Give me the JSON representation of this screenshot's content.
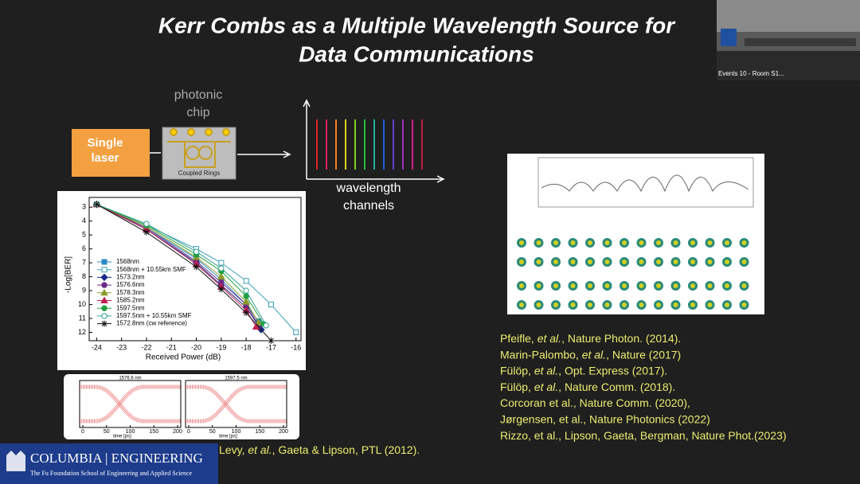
{
  "header": {
    "title_lines": [
      "Kerr Combs as a Multiple Wavelength Source for",
      "Data Communications"
    ]
  },
  "video_inset": {
    "label": "Events 10 - Room S1..."
  },
  "schematic": {
    "laser": [
      "Single",
      "laser"
    ],
    "chip_label": [
      "photonic",
      "chip"
    ],
    "chip_caption": "Coupled Rings",
    "spectrum_label": [
      "wavelength",
      "channels"
    ]
  },
  "chart_data": {
    "type": "line",
    "ylabel": "-Log[BER]",
    "xlabel": "Received Power (dB)",
    "xlim": [
      -24.3,
      -15.8
    ],
    "xticks": [
      -24,
      -23,
      -22,
      -21,
      -20,
      -19,
      -18,
      -17,
      -16
    ],
    "ylim": [
      2.3,
      12.6
    ],
    "yticks": [
      3,
      4,
      5,
      6,
      7,
      8,
      9,
      10,
      11,
      12
    ],
    "y_inverted": true,
    "series": [
      {
        "name": "1568nm",
        "color": "#2a8cc8",
        "marker": "square",
        "x": [
          -24,
          -22,
          -20,
          -19,
          -18,
          -17.5
        ],
        "values": [
          2.8,
          4.5,
          6.7,
          8.2,
          10,
          11.2
        ]
      },
      {
        "name": "1568nm + 10.55km SMF",
        "color": "#3aa0b8",
        "marker": "open-square",
        "x": [
          -24,
          -22,
          -20,
          -19,
          -18,
          -17,
          -16
        ],
        "values": [
          2.8,
          4.3,
          6,
          7,
          8.3,
          10,
          12
        ]
      },
      {
        "name": "1573.2nm",
        "color": "#1a2a8a",
        "marker": "diamond",
        "x": [
          -24,
          -22,
          -20,
          -19,
          -18,
          -17.4
        ],
        "values": [
          2.8,
          4.6,
          7,
          8.6,
          10.2,
          11.8
        ]
      },
      {
        "name": "1576.6nm",
        "color": "#6a2a8a",
        "marker": "circle",
        "x": [
          -24,
          -22,
          -20,
          -19,
          -18,
          -17.5
        ],
        "values": [
          2.8,
          4.5,
          6.9,
          8.4,
          10,
          11.5
        ]
      },
      {
        "name": "1578.3nm",
        "color": "#8a9a2a",
        "marker": "triangle",
        "x": [
          -24,
          -22,
          -20,
          -19,
          -18,
          -17.5
        ],
        "values": [
          2.8,
          4.4,
          6.6,
          8,
          9.8,
          11.3
        ]
      },
      {
        "name": "1585.2nm",
        "color": "#c02050",
        "marker": "triangle",
        "x": [
          -24,
          -22,
          -20,
          -19,
          -18,
          -17.6
        ],
        "values": [
          2.8,
          4.6,
          7.1,
          8.7,
          10.4,
          11.6
        ]
      },
      {
        "name": "1597.5nm",
        "color": "#20a040",
        "marker": "circle",
        "x": [
          -24,
          -22,
          -20,
          -19,
          -18,
          -17.3
        ],
        "values": [
          2.8,
          4.3,
          6.4,
          7.6,
          9.4,
          11.4
        ]
      },
      {
        "name": "1597.5nm + 10.55km SMF",
        "color": "#30a090",
        "marker": "open-circle",
        "x": [
          -24,
          -22,
          -20,
          -19,
          -18,
          -17.2
        ],
        "values": [
          2.8,
          4.2,
          6.2,
          7.4,
          9,
          11.5
        ]
      },
      {
        "name": "1572.8nm (cw reference)",
        "color": "#111111",
        "marker": "star",
        "x": [
          -24,
          -22,
          -20,
          -19,
          -18,
          -17
        ],
        "values": [
          2.8,
          4.8,
          7.3,
          8.9,
          10.6,
          12.6
        ]
      }
    ]
  },
  "eye_diagrams": {
    "titles": [
      "1576.6 nm",
      "1597.5 nm"
    ],
    "xticks": [
      0,
      50,
      100,
      150,
      200
    ],
    "xlabel": "time [ps]"
  },
  "citation": [
    {
      "text": "Levy, "
    },
    {
      "text": "et al.",
      "italic": true
    },
    {
      "text": ", Gaeta & Lipson, PTL (2012)."
    }
  ],
  "references": [
    [
      {
        "text": "Pfeifle, "
      },
      {
        "text": "et al.",
        "italic": true
      },
      {
        "text": ", Nature Photon. (2014)."
      }
    ],
    [
      {
        "text": "Marin-Palombo, "
      },
      {
        "text": "et al.",
        "italic": true
      },
      {
        "text": ", Nature (2017)"
      }
    ],
    [
      {
        "text": "Fülöp, "
      },
      {
        "text": "et al.",
        "italic": true
      },
      {
        "text": ", Opt. Express (2017)."
      }
    ],
    [
      {
        "text": "Fülöp, "
      },
      {
        "text": "et al.",
        "italic": true
      },
      {
        "text": ", Nature Comm. (2018)."
      }
    ],
    [
      {
        "text": "Corcoran et al., Nature Comm. (2020),"
      }
    ],
    [
      {
        "text": "Jørgensen, et al., Nature Photonics (2022)"
      }
    ],
    [
      {
        "text": "Rizzo, et al., Lipson, Gaeta, Bergman, Nature Phot.(2023)"
      }
    ]
  ],
  "logo": {
    "name": "COLUMBIA | ENGINEERING",
    "subtitle": "The Fu Foundation School of Engineering and Applied Science"
  }
}
